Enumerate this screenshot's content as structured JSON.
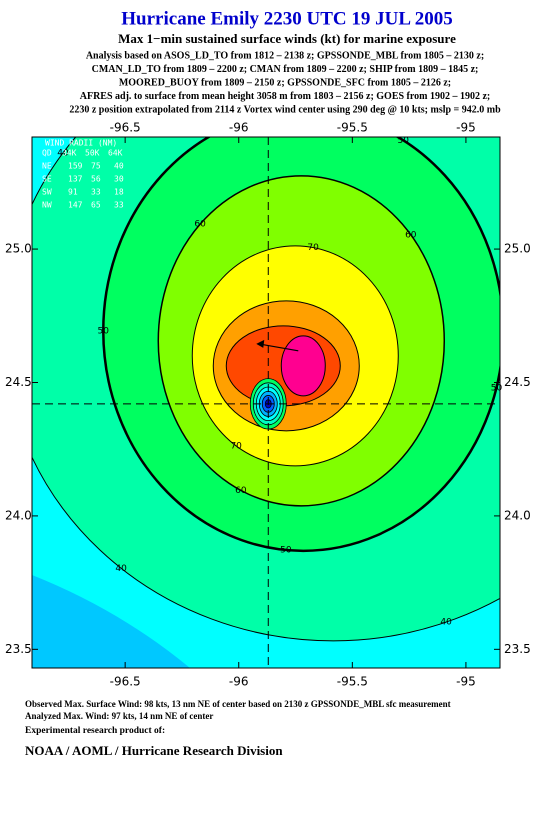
{
  "header": {
    "title": "Hurricane Emily 2230 UTC 19 JUL 2005",
    "subtitle": "Max 1−min sustained surface winds (kt) for marine exposure",
    "notes": [
      "Analysis based on  ASOS_LD_TO from 1812 – 2138 z;  GPSSONDE_MBL from 1805 – 2130 z;",
      "CMAN_LD_TO from 1809 – 2200 z;  CMAN from 1809 – 2200 z;  SHIP from 1809 – 1845 z;",
      "MOORED_BUOY from 1809 – 2150 z;  GPSSONDE_SFC from 1805 – 2126 z;",
      "AFRES adj. to surface from mean height 3058 m from 1803 – 2156 z;  GOES from 1902 – 1902 z;",
      "2230 z position extrapolated from 2114 z Vortex wind center using 290 deg @ 10 kts; mslp = 942.0 mb"
    ]
  },
  "map": {
    "xlim": [
      -96.91,
      -94.85
    ],
    "ylim": [
      23.43,
      25.42
    ],
    "xticks": [
      -96.5,
      -96.0,
      -95.5,
      -95.0
    ],
    "yticks": [
      {
        "value": 25.0,
        "label": "25.0"
      },
      24.5,
      {
        "value": 24.0,
        "label": "24.0"
      },
      23.5
    ],
    "center": {
      "lon": -95.87,
      "lat": 24.42
    },
    "contours": [
      {
        "level": 40,
        "color": "#00ffa8",
        "line_width": 1
      },
      {
        "level": 50,
        "color": "#00ff60",
        "line_width": 2.5
      },
      {
        "level": 60,
        "color": "#80ff00",
        "line_width": 1.5
      },
      {
        "level": 70,
        "color": "#ffff00",
        "line_width": 1
      },
      {
        "level": 80,
        "color": "#ffa000",
        "line_width": 1
      },
      {
        "level": 90,
        "color": "#ff4800",
        "line_width": 1
      },
      {
        "level": 95,
        "color": "#ff0090",
        "line_width": 1
      }
    ],
    "wind_radii": {
      "title": "WIND RADII (NM)",
      "header": [
        "QD",
        "34K",
        "50K",
        "64K"
      ],
      "rows": [
        [
          "NE",
          "159",
          "75",
          "40"
        ],
        [
          "SE",
          "137",
          "56",
          "30"
        ],
        [
          "SW",
          "91",
          "33",
          "18"
        ],
        [
          "NW",
          "147",
          "65",
          "33"
        ]
      ]
    }
  },
  "footer": {
    "observed": "Observed Max. Surface Wind: 98 kts, 13 nm NE of center based on 2130 z GPSSONDE_MBL sfc measurement",
    "analyzed": "Analyzed Max. Wind: 97 kts, 14 nm NE of center",
    "product": "Experimental research product of:",
    "org": "NOAA / AOML / Hurricane Research Division"
  }
}
